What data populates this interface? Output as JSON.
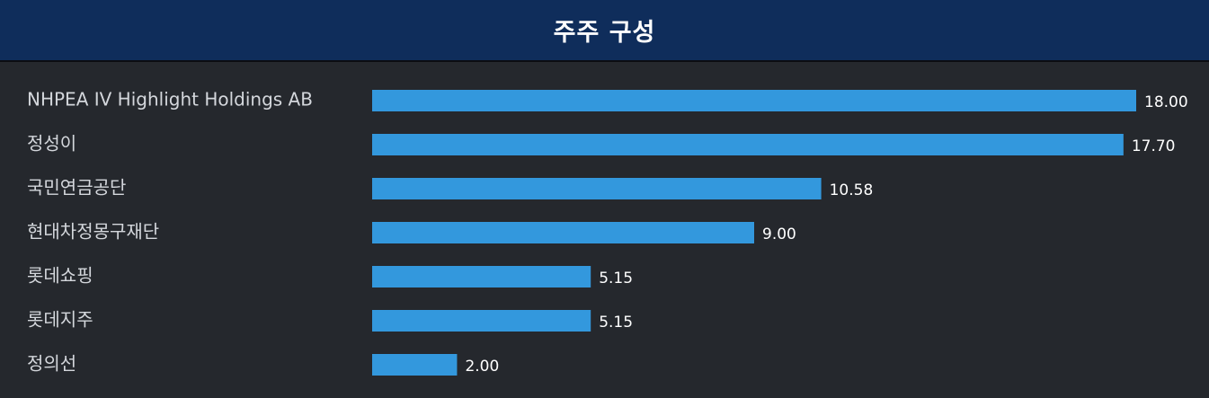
{
  "header": {
    "title": "주주 구성"
  },
  "colors": {
    "background": "#25282d",
    "header": "#0f2d5b",
    "bar": "#3398dd",
    "label_text": "#d4d7dc",
    "value_text": "#ffffff"
  },
  "chart_data": {
    "type": "bar",
    "orientation": "horizontal",
    "title": "",
    "xlabel": "",
    "ylabel": "",
    "xlim": [
      0,
      18
    ],
    "grid": false,
    "legend": "none",
    "categories": [
      "NHPEA IV Highlight Holdings AB",
      "정성이",
      "국민연금공단",
      "현대차정몽구재단",
      "롯데쇼핑",
      "롯데지주",
      "정의선"
    ],
    "values": [
      18.0,
      17.7,
      10.58,
      9.0,
      5.15,
      5.15,
      2.0
    ],
    "value_labels": [
      "18.00",
      "17.70",
      "10.58",
      "9.00",
      "5.15",
      "5.15",
      "2.00"
    ]
  }
}
